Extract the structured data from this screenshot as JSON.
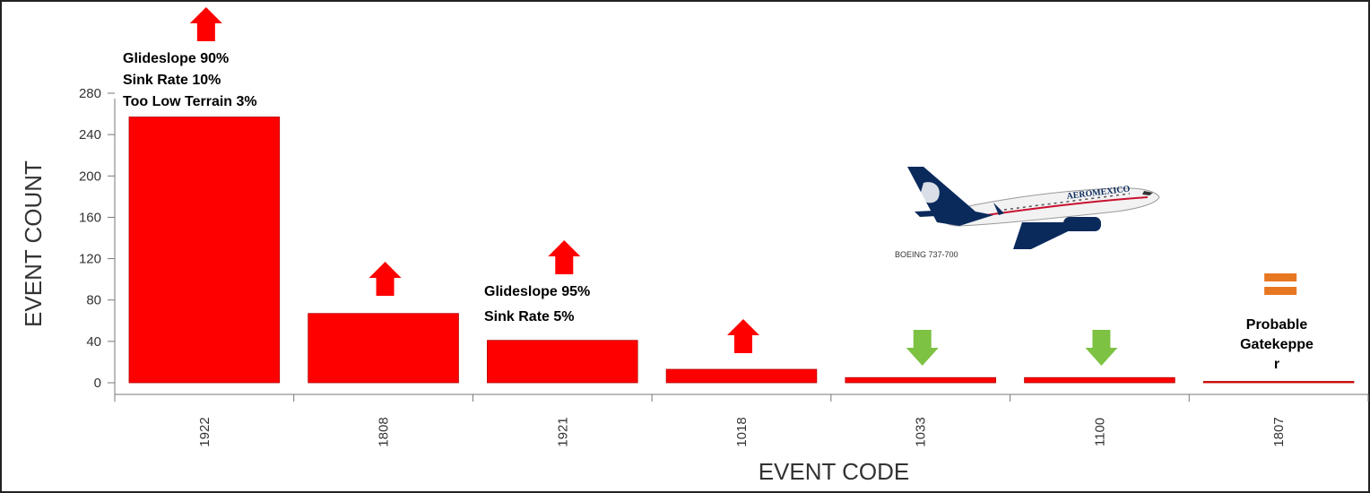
{
  "chart_data": {
    "type": "bar",
    "title": "",
    "xlabel": "EVENT CODE",
    "ylabel": "EVENT COUNT",
    "ylim": [
      0,
      280
    ],
    "yticks": [
      0,
      40,
      80,
      120,
      160,
      200,
      240,
      280
    ],
    "categories": [
      "1922",
      "1808",
      "1921",
      "1018",
      "1033",
      "1100",
      "1807"
    ],
    "values": [
      257,
      67,
      41,
      13,
      5,
      5,
      1
    ],
    "bar_color": "#ff0000",
    "grid": false,
    "trends": [
      {
        "category": "1922",
        "direction": "up",
        "color": "#ff0000"
      },
      {
        "category": "1808",
        "direction": "up",
        "color": "#ff0000"
      },
      {
        "category": "1921",
        "direction": "up",
        "color": "#ff0000"
      },
      {
        "category": "1018",
        "direction": "up",
        "color": "#ff0000"
      },
      {
        "category": "1033",
        "direction": "down",
        "color": "#7dc243"
      },
      {
        "category": "1100",
        "direction": "down",
        "color": "#7dc243"
      },
      {
        "category": "1807",
        "direction": "equal",
        "color": "#e87722"
      }
    ],
    "annotations": [
      {
        "category": "1922",
        "lines": [
          "Glideslope 90%",
          "Sink Rate 10%",
          "Too Low Terrain 3%"
        ]
      },
      {
        "category": "1921",
        "lines": [
          "Glideslope 95%",
          "Sink Rate 5%"
        ]
      },
      {
        "category": "1807",
        "lines": [
          "Probable",
          "Gatekeppe",
          "r"
        ]
      }
    ]
  },
  "aircraft_image": {
    "caption": "BOEING 737-700",
    "brand": "AEROMEXICO",
    "colors": {
      "tail": "#0a2a5c",
      "fuselage": "#f2f2f2",
      "stripe": "#c8102e"
    }
  }
}
